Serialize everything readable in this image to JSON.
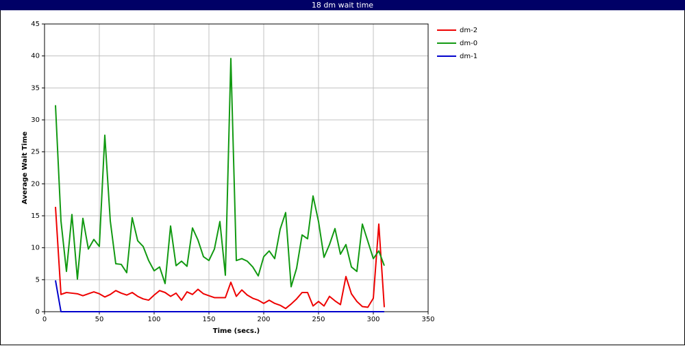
{
  "chart_data": {
    "type": "line",
    "title": "18 dm wait time",
    "x_label": "Time (secs.)",
    "y_label": "Average Wait Time",
    "x": [
      10,
      15,
      20,
      25,
      30,
      35,
      40,
      45,
      50,
      55,
      60,
      65,
      70,
      75,
      80,
      85,
      90,
      95,
      100,
      105,
      110,
      115,
      120,
      125,
      130,
      135,
      140,
      145,
      150,
      155,
      160,
      165,
      170,
      175,
      180,
      185,
      190,
      195,
      200,
      205,
      210,
      215,
      220,
      225,
      230,
      235,
      240,
      245,
      250,
      255,
      260,
      265,
      270,
      275,
      280,
      285,
      290,
      295,
      300,
      305,
      310
    ],
    "series": [
      {
        "name": "dm-2",
        "color": "#ee0000",
        "values": [
          16.4,
          2.7,
          3.0,
          2.9,
          2.8,
          2.5,
          2.8,
          3.1,
          2.8,
          2.3,
          2.7,
          3.3,
          2.9,
          2.6,
          3.0,
          2.4,
          2.0,
          1.8,
          2.6,
          3.3,
          3.0,
          2.4,
          2.9,
          1.8,
          3.1,
          2.7,
          3.5,
          2.8,
          2.5,
          2.2,
          2.2,
          2.2,
          4.6,
          2.4,
          3.4,
          2.6,
          2.1,
          1.8,
          1.3,
          1.8,
          1.3,
          1.0,
          0.5,
          1.2,
          2.0,
          3.0,
          3.0,
          0.9,
          1.6,
          0.9,
          2.4,
          1.7,
          1.1,
          5.5,
          2.8,
          1.6,
          0.8,
          0.7,
          2.1,
          13.7,
          0.7
        ]
      },
      {
        "name": "dm-0",
        "color": "#119911",
        "values": [
          32.3,
          14.2,
          6.3,
          15.2,
          5.1,
          14.6,
          9.8,
          11.3,
          10.2,
          27.6,
          14.2,
          7.5,
          7.4,
          6.1,
          14.7,
          11.1,
          10.2,
          8.0,
          6.4,
          7.0,
          4.4,
          13.4,
          7.2,
          7.9,
          7.1,
          13.1,
          11.2,
          8.6,
          8.0,
          9.8,
          14.1,
          5.7,
          39.6,
          8.0,
          8.3,
          7.9,
          7.0,
          5.6,
          8.6,
          9.5,
          8.3,
          12.9,
          15.5,
          3.9,
          6.8,
          12.0,
          11.4,
          18.1,
          14.1,
          8.5,
          10.5,
          13.0,
          9.0,
          10.5,
          7.0,
          6.3,
          13.7,
          11.0,
          8.3,
          9.5,
          7.2
        ]
      },
      {
        "name": "dm-1",
        "color": "#0000cc",
        "values": [
          4.9,
          0,
          0,
          0,
          0,
          0,
          0,
          0,
          0,
          0,
          0,
          0,
          0,
          0,
          0,
          0,
          0,
          0,
          0,
          0,
          0,
          0,
          0,
          0,
          0,
          0,
          0,
          0,
          0,
          0,
          0,
          0,
          0,
          0,
          0,
          0,
          0,
          0,
          0,
          0,
          0,
          0,
          0,
          0,
          0,
          0,
          0,
          0,
          0,
          0,
          0,
          0,
          0,
          0,
          0,
          0,
          0,
          0,
          0,
          0,
          0
        ]
      }
    ],
    "xlim": [
      0,
      350
    ],
    "xticks": [
      0,
      50,
      100,
      150,
      200,
      250,
      300,
      350
    ],
    "ylim": [
      0,
      45
    ],
    "yticks": [
      0,
      5,
      10,
      15,
      20,
      25,
      30,
      35,
      40,
      45
    ],
    "grid": true,
    "legend": "right"
  }
}
